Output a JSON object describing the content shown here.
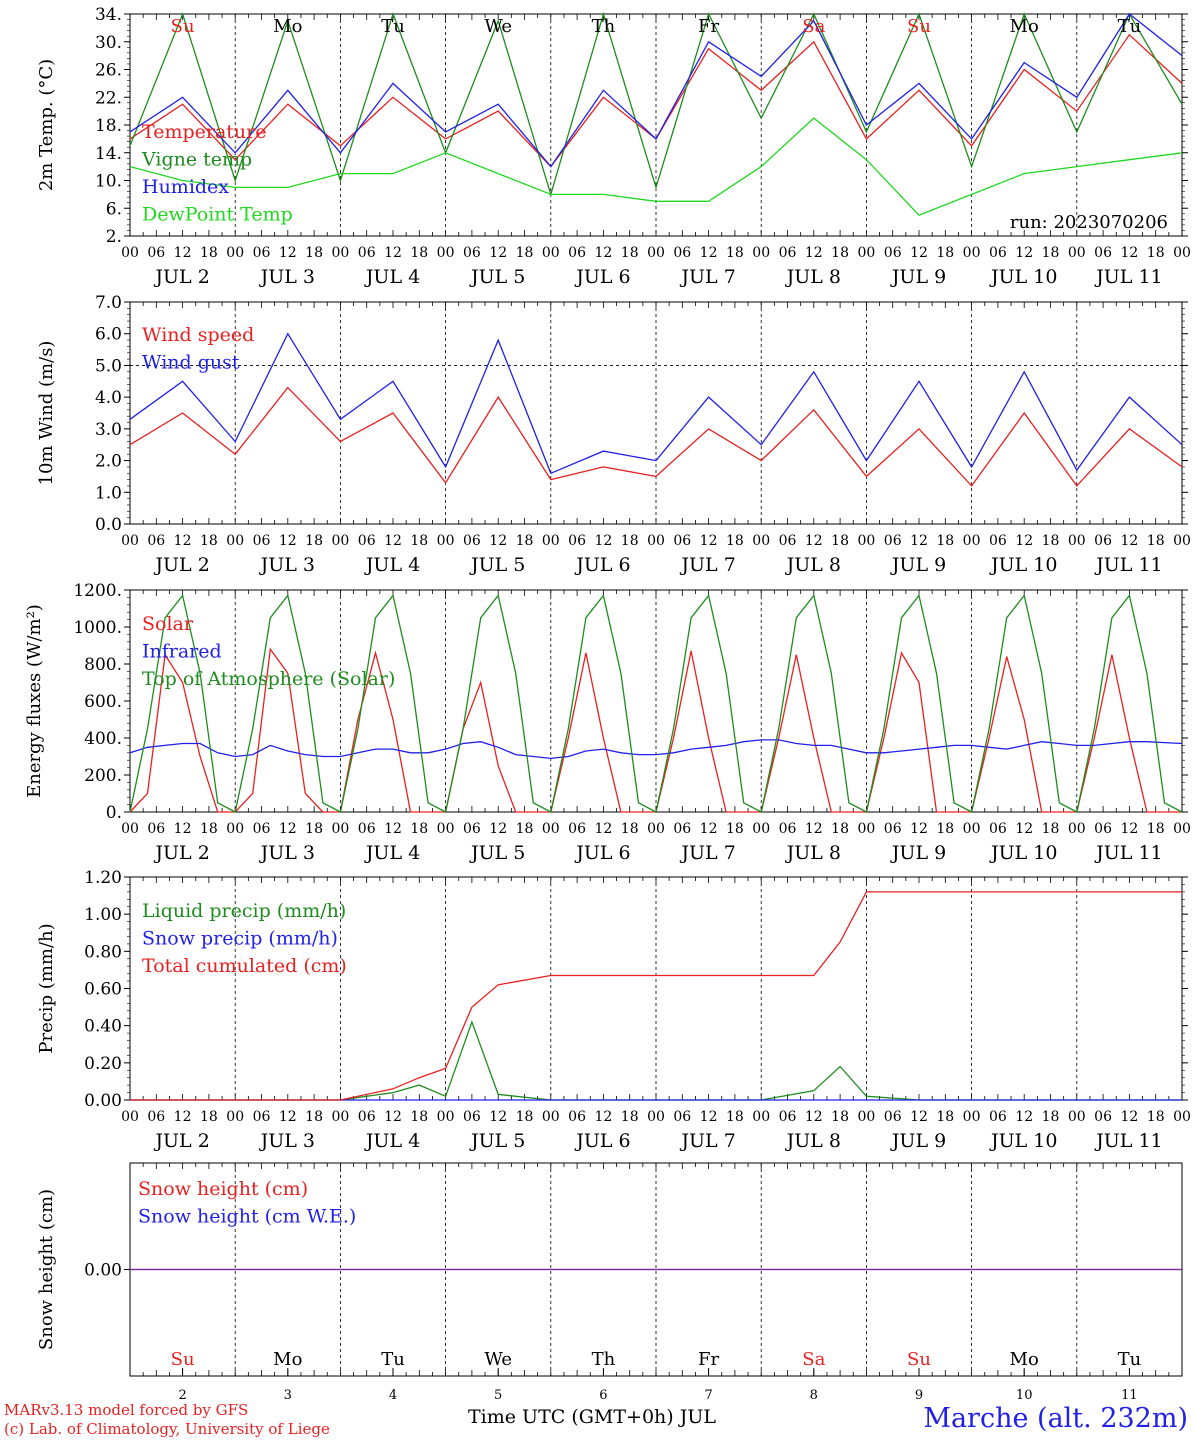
{
  "chart_data": [
    {
      "type": "line",
      "panel": "temperature",
      "ylabel": "2m Temp. (°C)",
      "ylim": [
        2,
        34
      ],
      "yticks": [
        "2.",
        "6.",
        "10.",
        "14.",
        "18.",
        "22.",
        "26.",
        "30.",
        "34."
      ],
      "run_label": "run: 2023070206",
      "weekday_labels": [
        {
          "day": "Su",
          "color": "#e82020"
        },
        {
          "day": "Mo",
          "color": "#000000"
        },
        {
          "day": "Tu",
          "color": "#000000"
        },
        {
          "day": "We",
          "color": "#000000"
        },
        {
          "day": "Th",
          "color": "#000000"
        },
        {
          "day": "Fr",
          "color": "#000000"
        },
        {
          "day": "Sa",
          "color": "#e82020"
        },
        {
          "day": "Su",
          "color": "#e82020"
        },
        {
          "day": "Mo",
          "color": "#000000"
        },
        {
          "day": "Tu",
          "color": "#000000"
        }
      ],
      "x_hours": [
        0,
        12,
        24,
        36,
        48,
        60,
        72,
        84,
        96,
        108,
        120,
        132,
        144,
        156,
        168,
        180,
        192,
        204,
        216,
        228,
        240
      ],
      "series": [
        {
          "name": "Temperature",
          "color": "#e82020",
          "values": [
            16,
            21,
            13,
            21,
            15,
            22,
            16,
            20,
            12,
            22,
            16,
            29,
            23,
            30,
            16,
            23,
            15,
            26,
            20,
            31,
            24
          ]
        },
        {
          "name": "Vigne temp",
          "color": "#1e8c1e",
          "values": [
            15,
            34,
            10,
            33,
            10,
            34,
            14,
            33,
            8,
            34,
            9,
            34,
            19,
            34,
            17,
            34,
            12,
            34,
            17,
            34,
            21
          ]
        },
        {
          "name": "Humidex",
          "color": "#2020e8",
          "values": [
            17,
            22,
            14,
            23,
            14,
            24,
            17,
            21,
            12,
            23,
            16,
            30,
            25,
            33,
            18,
            24,
            16,
            27,
            22,
            34,
            28
          ]
        },
        {
          "name": "DewPoint Temp",
          "color": "#20d820",
          "values": [
            12,
            10,
            9,
            9,
            11,
            11,
            14,
            11,
            8,
            8,
            7,
            7,
            12,
            19,
            13,
            5,
            8,
            11,
            12,
            13,
            14
          ]
        }
      ]
    },
    {
      "type": "line",
      "panel": "wind",
      "ylabel": "10m Wind (m/s)",
      "ylim": [
        0,
        7
      ],
      "yticks": [
        "0.0",
        "1.0",
        "2.0",
        "3.0",
        "4.0",
        "5.0",
        "6.0",
        "7.0"
      ],
      "x_hours": [
        0,
        12,
        24,
        36,
        48,
        60,
        72,
        84,
        96,
        108,
        120,
        132,
        144,
        156,
        168,
        180,
        192,
        204,
        216,
        228,
        240
      ],
      "series": [
        {
          "name": "Wind speed",
          "color": "#e82020",
          "values": [
            2.5,
            3.5,
            2.2,
            4.3,
            2.6,
            3.5,
            1.3,
            4.0,
            1.4,
            1.8,
            1.5,
            3.0,
            2.0,
            3.6,
            1.5,
            3.0,
            1.2,
            3.5,
            1.2,
            3.0,
            1.8
          ]
        },
        {
          "name": "Wind gust",
          "color": "#2020e8",
          "values": [
            3.3,
            4.5,
            2.6,
            6.0,
            3.3,
            4.5,
            1.8,
            5.8,
            1.6,
            2.3,
            2.0,
            4.0,
            2.5,
            4.8,
            2.0,
            4.5,
            1.8,
            4.8,
            1.7,
            4.0,
            2.5
          ]
        }
      ]
    },
    {
      "type": "line",
      "panel": "energy",
      "ylabel": "Energy fluxes (W/m²)",
      "ylim": [
        0,
        1200
      ],
      "yticks": [
        "0.",
        "200.",
        "400.",
        "600.",
        "800.",
        "1000.",
        "1200."
      ],
      "x_hours": [
        0,
        4,
        8,
        12,
        16,
        20,
        24,
        28,
        32,
        36,
        40,
        44,
        48,
        52,
        56,
        60,
        64,
        68,
        72,
        76,
        80,
        84,
        88,
        92,
        96,
        100,
        104,
        108,
        112,
        116,
        120,
        124,
        128,
        132,
        136,
        140,
        144,
        148,
        152,
        156,
        160,
        164,
        168,
        172,
        176,
        180,
        184,
        188,
        192,
        196,
        200,
        204,
        208,
        212,
        216,
        220,
        224,
        228,
        232,
        236,
        240
      ],
      "series": [
        {
          "name": "Solar",
          "color": "#e82020",
          "values": [
            0,
            100,
            850,
            700,
            300,
            0,
            0,
            100,
            880,
            750,
            100,
            0,
            0,
            500,
            860,
            500,
            0,
            0,
            0,
            450,
            700,
            250,
            0,
            0,
            0,
            400,
            860,
            400,
            0,
            0,
            0,
            400,
            870,
            400,
            0,
            0,
            0,
            400,
            850,
            400,
            0,
            0,
            0,
            400,
            860,
            700,
            0,
            0,
            0,
            400,
            840,
            500,
            0,
            0,
            0,
            400,
            850,
            400,
            0,
            0,
            0
          ]
        },
        {
          "name": "Infrared",
          "color": "#2020e8",
          "values": [
            320,
            350,
            360,
            370,
            370,
            320,
            300,
            310,
            360,
            330,
            310,
            300,
            300,
            320,
            340,
            340,
            320,
            320,
            340,
            370,
            380,
            350,
            310,
            300,
            290,
            300,
            330,
            340,
            320,
            310,
            310,
            320,
            340,
            350,
            360,
            380,
            390,
            390,
            370,
            360,
            360,
            340,
            320,
            320,
            330,
            340,
            350,
            360,
            360,
            350,
            340,
            360,
            380,
            370,
            360,
            360,
            370,
            380,
            380,
            375,
            370
          ]
        },
        {
          "name": "Top of Atmosphere (Solar)",
          "color": "#1e8c1e",
          "values": [
            0,
            450,
            1050,
            1170,
            750,
            50,
            0,
            450,
            1050,
            1170,
            750,
            50,
            0,
            450,
            1050,
            1170,
            750,
            50,
            0,
            450,
            1050,
            1170,
            750,
            50,
            0,
            450,
            1050,
            1170,
            750,
            50,
            0,
            450,
            1050,
            1170,
            750,
            50,
            0,
            450,
            1050,
            1170,
            750,
            50,
            0,
            450,
            1050,
            1170,
            750,
            50,
            0,
            450,
            1050,
            1170,
            750,
            50,
            0,
            450,
            1050,
            1170,
            750,
            50,
            0
          ]
        }
      ]
    },
    {
      "type": "line",
      "panel": "precip",
      "ylabel": "Precip (mm/h)",
      "ylim": [
        0,
        1.2
      ],
      "yticks": [
        "0.00",
        "0.20",
        "0.40",
        "0.60",
        "0.80",
        "1.00",
        "1.20"
      ],
      "x_hours": [
        0,
        12,
        24,
        36,
        48,
        60,
        66,
        72,
        78,
        84,
        96,
        108,
        120,
        132,
        144,
        156,
        162,
        168,
        180,
        192,
        204,
        216,
        228,
        240
      ],
      "series": [
        {
          "name": "Liquid precip (mm/h)",
          "color": "#1e8c1e",
          "values": [
            0,
            0,
            0,
            0,
            0,
            0.04,
            0.08,
            0.02,
            0.42,
            0.03,
            0,
            0,
            0,
            0,
            0,
            0.05,
            0.18,
            0.02,
            0,
            0,
            0,
            0,
            0,
            0
          ]
        },
        {
          "name": "Snow precip (mm/h)",
          "color": "#2020e8",
          "values": [
            0,
            0,
            0,
            0,
            0,
            0,
            0,
            0,
            0,
            0,
            0,
            0,
            0,
            0,
            0,
            0,
            0,
            0,
            0,
            0,
            0,
            0,
            0,
            0
          ]
        },
        {
          "name": "Total cumulated (cm)",
          "color": "#e82020",
          "values": [
            0,
            0,
            0,
            0,
            0,
            0.06,
            0.12,
            0.17,
            0.5,
            0.62,
            0.67,
            0.67,
            0.67,
            0.67,
            0.67,
            0.67,
            0.85,
            1.12,
            1.12,
            1.12,
            1.12,
            1.12,
            1.12,
            1.12
          ]
        }
      ]
    },
    {
      "type": "line",
      "panel": "snow",
      "ylabel": "Snow height (cm)",
      "yticks": [
        "0.00"
      ],
      "x_hours": [
        0,
        240
      ],
      "series": [
        {
          "name": "Snow height (cm)",
          "color": "#e82020",
          "values": [
            0,
            0
          ]
        },
        {
          "name": "Snow height (cm W.E.)",
          "color": "#2020e8",
          "values": [
            0,
            0
          ]
        }
      ]
    }
  ],
  "axis": {
    "hour_ticks": [
      "00",
      "06",
      "12",
      "18"
    ],
    "final_hour": "00",
    "date_labels": [
      "JUL  2",
      "JUL  3",
      "JUL  4",
      "JUL  5",
      "JUL  6",
      "JUL  7",
      "JUL  8",
      "JUL  9",
      "JUL 10",
      "JUL 11"
    ],
    "day_numbers": [
      "2",
      "3",
      "4",
      "5",
      "6",
      "7",
      "8",
      "9",
      "10",
      "11"
    ],
    "xlabel": "Time UTC (GMT+0h) JUL"
  },
  "footer": {
    "credit_line1": "MARv3.13 model forced by GFS",
    "credit_line2": "(c) Lab. of Climatology, University of Liege",
    "station": "Marche (alt. 232m)",
    "credit_color": "#e82020",
    "station_color": "#2020e8"
  }
}
